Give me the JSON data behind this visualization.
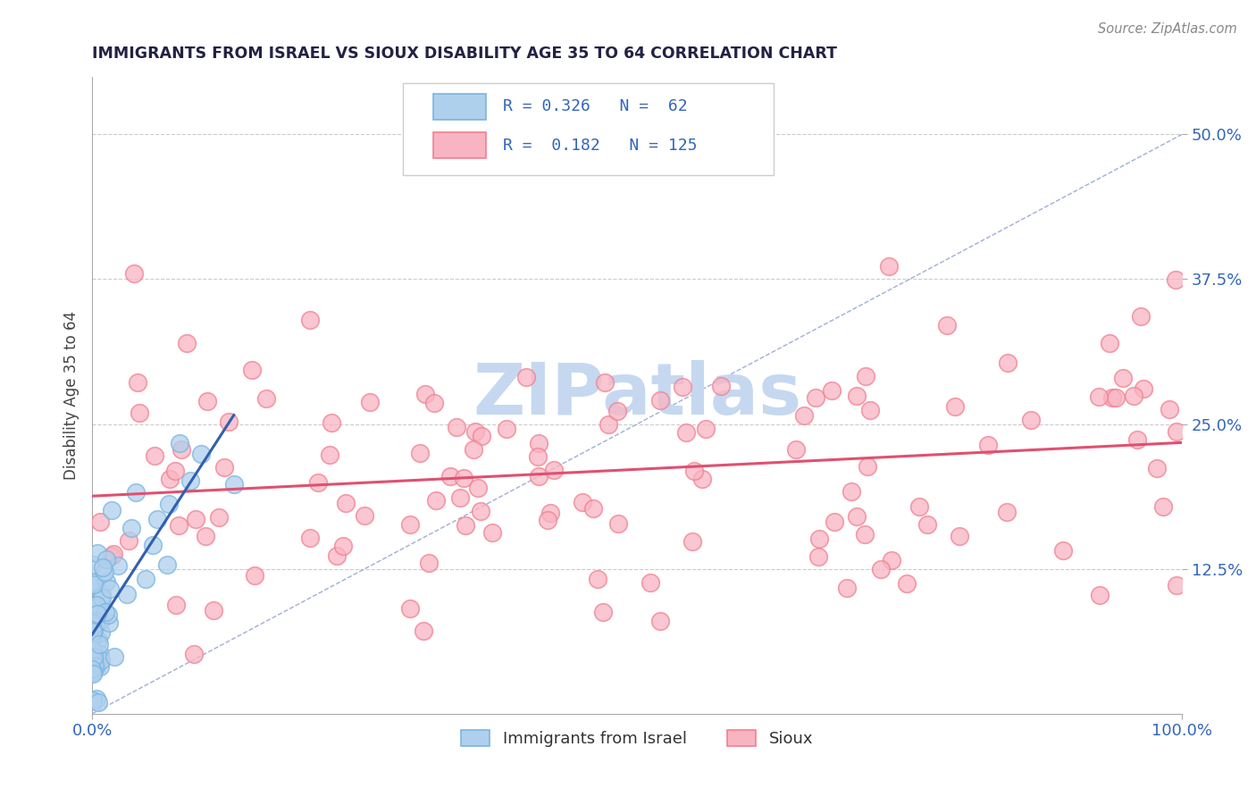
{
  "title": "IMMIGRANTS FROM ISRAEL VS SIOUX DISABILITY AGE 35 TO 64 CORRELATION CHART",
  "source": "Source: ZipAtlas.com",
  "ylabel": "Disability Age 35 to 64",
  "xlim": [
    0.0,
    1.0
  ],
  "ylim": [
    0.0,
    0.55
  ],
  "ytick_positions": [
    0.125,
    0.25,
    0.375,
    0.5
  ],
  "ytick_labels": [
    "12.5%",
    "25.0%",
    "37.5%",
    "50.0%"
  ],
  "xtick_positions": [
    0.0,
    1.0
  ],
  "xtick_labels": [
    "0.0%",
    "100.0%"
  ],
  "color_blue_face": "#afd0ed",
  "color_blue_edge": "#7ab5e0",
  "color_pink_face": "#f9b4c2",
  "color_pink_edge": "#f08090",
  "color_blue_line": "#3060b0",
  "color_pink_line": "#e05070",
  "color_diag": "#8899cc",
  "color_grid": "#cccccc",
  "watermark_color": "#c5d8f0",
  "title_color": "#222244",
  "tick_color": "#3366bb",
  "ylabel_color": "#444444",
  "source_color": "#888888",
  "legend_text_color": "#3366bb",
  "seed": 99
}
